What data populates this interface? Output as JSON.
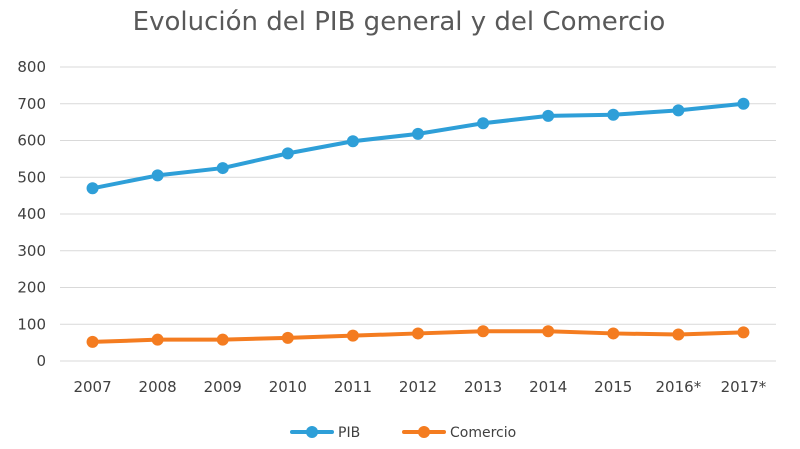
{
  "chart_data": {
    "type": "line",
    "title": "Evolución del PIB general y del Comercio",
    "xlabel": "",
    "ylabel": "",
    "categories": [
      "2007",
      "2008",
      "2009",
      "2010",
      "2011",
      "2012",
      "2013",
      "2014",
      "2015",
      "2016*",
      "2017*"
    ],
    "ylim": [
      0,
      800
    ],
    "yticks": [
      "0",
      "100",
      "200",
      "300",
      "400",
      "500",
      "600",
      "700",
      "800"
    ],
    "grid": true,
    "legend_position": "bottom",
    "series": [
      {
        "name": "PIB",
        "color": "#2e9fd8",
        "values": [
          470,
          505,
          525,
          565,
          598,
          618,
          647,
          667,
          670,
          682,
          700
        ]
      },
      {
        "name": "Comercio",
        "color": "#f47c20",
        "values": [
          52,
          58,
          58,
          63,
          69,
          75,
          81,
          81,
          75,
          72,
          78
        ]
      }
    ]
  }
}
